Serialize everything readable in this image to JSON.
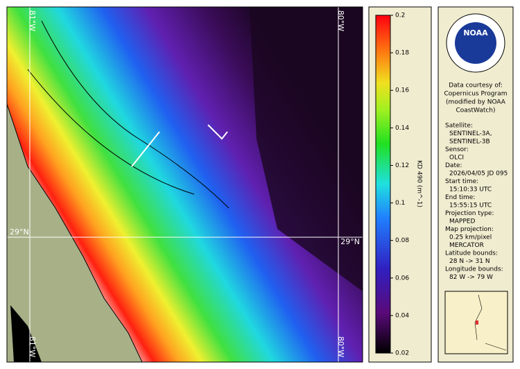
{
  "map": {
    "labels": {
      "lon_west": "81°W",
      "lon_east": "80°W",
      "lat": "29°N"
    }
  },
  "colorbar": {
    "label": "KD 490 (m^-1)",
    "lim": [
      0.02,
      0.2
    ],
    "ticks": [
      0.02,
      0.04,
      0.06,
      0.08,
      0.1,
      0.12,
      0.14,
      0.16,
      0.18,
      0.2
    ]
  },
  "info": {
    "logo": "NOAA",
    "credits": [
      "Data courtesy of:",
      "Copernicus Program",
      "(modified by NOAA",
      "CoastWatch)"
    ],
    "groups": [
      {
        "label": "Satellite:",
        "values": [
          "SENTINEL-3A,",
          "SENTINEL-3B"
        ]
      },
      {
        "label": "Sensor:",
        "values": [
          "OLCI"
        ]
      },
      {
        "label": "Date:",
        "values": [
          "2026/04/05 JD 095"
        ]
      },
      {
        "label": "Start time:",
        "values": [
          "15:10:33 UTC"
        ]
      },
      {
        "label": "End time:",
        "values": [
          "15:55:15 UTC"
        ]
      },
      {
        "label": "Projection type:",
        "values": [
          "MAPPED"
        ]
      },
      {
        "label": "Map projection:",
        "values": [
          "0.25 km/pixel",
          "MERCATOR"
        ]
      },
      {
        "label": "Latitude bounds:",
        "values": [
          "28 N -> 31 N"
        ]
      },
      {
        "label": "Longitude bounds:",
        "values": [
          "82 W -> 79 W"
        ]
      }
    ]
  }
}
